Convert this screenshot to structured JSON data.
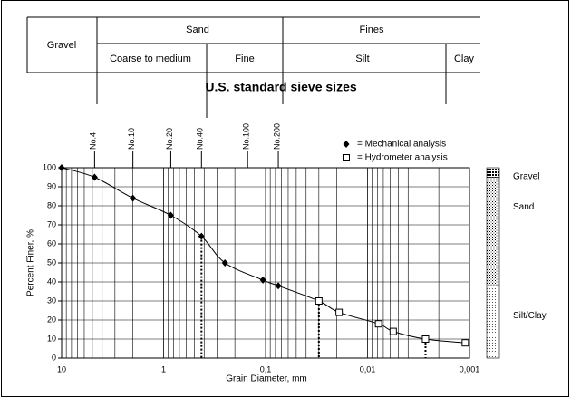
{
  "table": {
    "gravel": "Gravel",
    "sand": "Sand",
    "fines": "Fines",
    "coarse_to_medium": "Coarse to medium",
    "fine": "Fine",
    "silt": "Silt",
    "clay": "Clay",
    "sieve_title": "U.S. standard sieve sizes"
  },
  "chart_data": {
    "type": "scatter",
    "log_x": true,
    "grid": true,
    "xlabel": "Grain Diameter, mm",
    "ylabel": "Percent Finer, %",
    "xlim": [
      10,
      0.001
    ],
    "ylim": [
      0,
      100
    ],
    "xticks": [
      10,
      1,
      {
        "value": 0.1,
        "label": "0,1"
      },
      {
        "value": 0.01,
        "label": "0,01"
      },
      {
        "value": 0.001,
        "label": "0,001"
      }
    ],
    "yticks": [
      0,
      10,
      20,
      30,
      40,
      50,
      60,
      70,
      80,
      90,
      100
    ],
    "sieves": [
      {
        "label": "No.4",
        "size": 4.75
      },
      {
        "label": "No.10",
        "size": 2
      },
      {
        "label": "No.20",
        "size": 0.85
      },
      {
        "label": "No.40",
        "size": 0.425
      },
      {
        "label": "No.100",
        "size": 0.15
      },
      {
        "label": "No.200",
        "size": 0.075
      }
    ],
    "series": [
      {
        "name": "= Mechanical analysis",
        "marker": "diamond",
        "color": "#000000",
        "x": [
          10,
          4.75,
          2,
          0.85,
          0.425,
          0.25,
          0.106,
          0.075
        ],
        "values": [
          100,
          95,
          84,
          75,
          64,
          50,
          41,
          38
        ]
      },
      {
        "name": "= Hydrometer analysis",
        "marker": "square",
        "color": "#000000",
        "x": [
          0.03,
          0.019,
          0.0078,
          0.0056,
          0.0027,
          0.0011
        ],
        "values": [
          30,
          24,
          18,
          14,
          10,
          8
        ]
      }
    ],
    "soil_column": [
      {
        "name": "Gravel",
        "value": 5
      },
      {
        "name": "Sand",
        "value": 57
      },
      {
        "name": "Silt/Clay",
        "value": 38
      }
    ]
  }
}
